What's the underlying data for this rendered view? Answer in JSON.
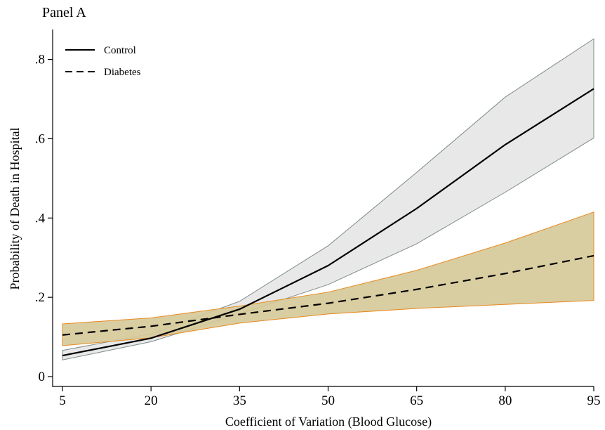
{
  "chart_data": {
    "type": "line",
    "title": "Panel A",
    "xlabel": "Coefficient of Variation (Blood Glucose)",
    "ylabel": "Probability of Death in Hospital",
    "x": [
      5,
      20,
      35,
      50,
      65,
      80,
      95
    ],
    "xticks": [
      5,
      20,
      35,
      50,
      65,
      80,
      95
    ],
    "xtick_labels": [
      "5",
      "20",
      "35",
      "50",
      "65",
      "80",
      "95"
    ],
    "yticks": [
      0,
      0.2,
      0.4,
      0.6,
      0.8
    ],
    "ytick_labels": [
      "0",
      ".2",
      ".4",
      ".6",
      ".8"
    ],
    "xlim": [
      5,
      95
    ],
    "ylim": [
      0,
      0.85
    ],
    "grid": false,
    "legend_position": "top-left",
    "series": [
      {
        "name": "Control",
        "style": "solid",
        "color": "#000000",
        "values": [
          0.053,
          0.097,
          0.17,
          0.28,
          0.424,
          0.585,
          0.726
        ],
        "ci_lower": [
          0.042,
          0.088,
          0.158,
          0.232,
          0.335,
          0.465,
          0.602
        ],
        "ci_upper": [
          0.066,
          0.108,
          0.19,
          0.33,
          0.515,
          0.705,
          0.852
        ],
        "band_fill": "#e8e8e8",
        "band_edge": "#7e8c86"
      },
      {
        "name": "Diabetes",
        "style": "dashed",
        "color": "#000000",
        "values": [
          0.105,
          0.127,
          0.157,
          0.185,
          0.22,
          0.26,
          0.305
        ],
        "ci_lower": [
          0.078,
          0.098,
          0.135,
          0.158,
          0.172,
          0.182,
          0.192
        ],
        "ci_upper": [
          0.133,
          0.148,
          0.178,
          0.213,
          0.268,
          0.337,
          0.415
        ],
        "band_fill": "#d6c99a",
        "band_edge": "#e8891e"
      }
    ]
  }
}
